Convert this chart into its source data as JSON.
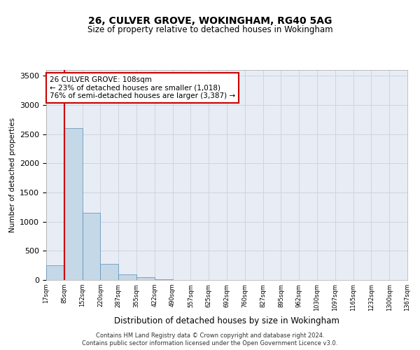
{
  "title1": "26, CULVER GROVE, WOKINGHAM, RG40 5AG",
  "title2": "Size of property relative to detached houses in Wokingham",
  "xlabel": "Distribution of detached houses by size in Wokingham",
  "ylabel": "Number of detached properties",
  "bar_values": [
    250,
    2610,
    1150,
    275,
    100,
    45,
    18,
    3,
    0,
    0,
    0,
    0,
    0,
    0,
    0,
    0,
    0,
    0,
    0,
    0
  ],
  "bar_labels": [
    "17sqm",
    "85sqm",
    "152sqm",
    "220sqm",
    "287sqm",
    "355sqm",
    "422sqm",
    "490sqm",
    "557sqm",
    "625sqm",
    "692sqm",
    "760sqm",
    "827sqm",
    "895sqm",
    "962sqm",
    "1030sqm",
    "1097sqm",
    "1165sqm",
    "1232sqm",
    "1300sqm",
    "1367sqm"
  ],
  "bar_color": "#c5d8e8",
  "bar_edge_color": "#5a8db5",
  "grid_color": "#cdd5e0",
  "background_color": "#e8edf5",
  "property_line_color": "#cc0000",
  "annotation_line1": "26 CULVER GROVE: 108sqm",
  "annotation_line2": "← 23% of detached houses are smaller (1,018)",
  "annotation_line3": "76% of semi-detached houses are larger (3,387) →",
  "annotation_box_edgecolor": "#cc0000",
  "footer_text": "Contains HM Land Registry data © Crown copyright and database right 2024.\nContains public sector information licensed under the Open Government Licence v3.0.",
  "ylim": [
    0,
    3600
  ],
  "yticks": [
    0,
    500,
    1000,
    1500,
    2000,
    2500,
    3000,
    3500
  ]
}
